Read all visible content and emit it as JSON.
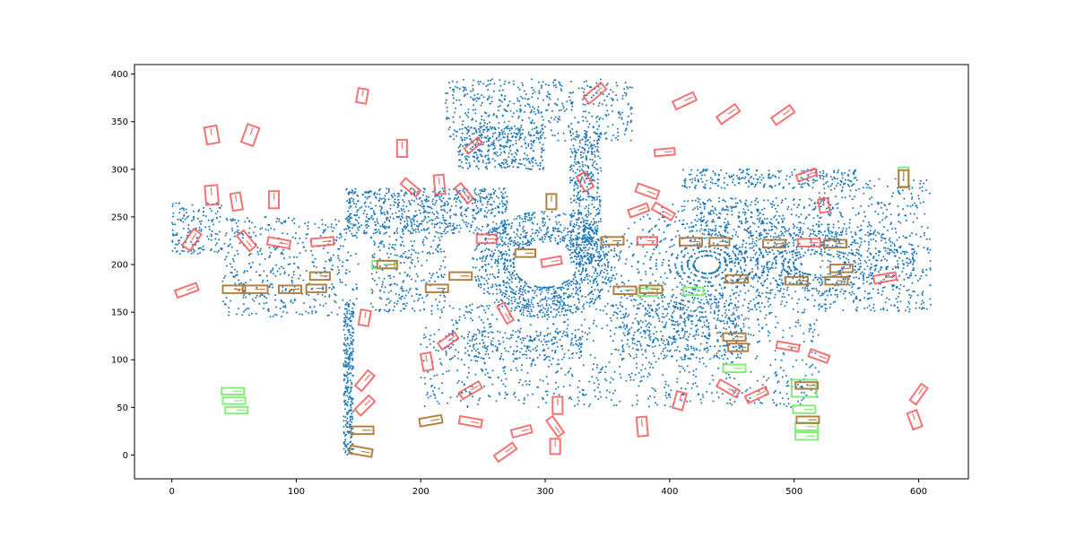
{
  "chart_data": {
    "type": "scatter",
    "title": "",
    "xlabel": "",
    "ylabel": "",
    "xlim": [
      -30,
      640
    ],
    "ylim": [
      -25,
      410
    ],
    "x_ticks": [
      0,
      100,
      200,
      300,
      400,
      500,
      600
    ],
    "y_ticks": [
      0,
      50,
      100,
      150,
      200,
      250,
      300,
      350,
      400
    ],
    "grid": false,
    "legend": "none",
    "colors": {
      "points": "#1f77b4",
      "red_boxes": "#f25b5b",
      "green_boxes": "#7aea6a",
      "brown_boxes": "#b07a3a",
      "axes": "#000000"
    },
    "red_boxes": [
      {
        "cx": 16,
        "cy": 226,
        "w": 16,
        "h": 10,
        "angle": 55
      },
      {
        "cx": 12,
        "cy": 173,
        "w": 18,
        "h": 8,
        "angle": 20
      },
      {
        "cx": 32,
        "cy": 273,
        "w": 10,
        "h": 20,
        "angle": 5
      },
      {
        "cx": 32,
        "cy": 336,
        "w": 10,
        "h": 18,
        "angle": 10
      },
      {
        "cx": 52,
        "cy": 266,
        "w": 8,
        "h": 18,
        "angle": 10
      },
      {
        "cx": 63,
        "cy": 336,
        "w": 10,
        "h": 20,
        "angle": -20
      },
      {
        "cx": 60,
        "cy": 225,
        "w": 16,
        "h": 9,
        "angle": -50
      },
      {
        "cx": 82,
        "cy": 268,
        "w": 8,
        "h": 18,
        "angle": 0
      },
      {
        "cx": 86,
        "cy": 223,
        "w": 18,
        "h": 8,
        "angle": -10
      },
      {
        "cx": 121,
        "cy": 224,
        "w": 18,
        "h": 8,
        "angle": 5
      },
      {
        "cx": 153,
        "cy": 377,
        "w": 8,
        "h": 15,
        "angle": -10
      },
      {
        "cx": 155,
        "cy": 144,
        "w": 8,
        "h": 16,
        "angle": -10
      },
      {
        "cx": 155,
        "cy": 78,
        "w": 16,
        "h": 9,
        "angle": 50
      },
      {
        "cx": 155,
        "cy": 52,
        "w": 16,
        "h": 9,
        "angle": 45
      },
      {
        "cx": 185,
        "cy": 322,
        "w": 8,
        "h": 18,
        "angle": 0
      },
      {
        "cx": 192,
        "cy": 281,
        "w": 16,
        "h": 8,
        "angle": -40
      },
      {
        "cx": 215,
        "cy": 284,
        "w": 8,
        "h": 20,
        "angle": 5
      },
      {
        "cx": 205,
        "cy": 98,
        "w": 8,
        "h": 18,
        "angle": 10
      },
      {
        "cx": 222,
        "cy": 120,
        "w": 16,
        "h": 8,
        "angle": 35
      },
      {
        "cx": 235,
        "cy": 275,
        "w": 16,
        "h": 8,
        "angle": -50
      },
      {
        "cx": 242,
        "cy": 325,
        "w": 14,
        "h": 7,
        "angle": 40
      },
      {
        "cx": 240,
        "cy": 68,
        "w": 18,
        "h": 8,
        "angle": 30
      },
      {
        "cx": 240,
        "cy": 35,
        "w": 18,
        "h": 8,
        "angle": -10
      },
      {
        "cx": 253,
        "cy": 227,
        "w": 16,
        "h": 9,
        "angle": 0
      },
      {
        "cx": 268,
        "cy": 149,
        "w": 16,
        "h": 8,
        "angle": -60
      },
      {
        "cx": 268,
        "cy": 3,
        "w": 18,
        "h": 8,
        "angle": 35
      },
      {
        "cx": 281,
        "cy": 25,
        "w": 16,
        "h": 8,
        "angle": 15
      },
      {
        "cx": 305,
        "cy": 203,
        "w": 16,
        "h": 8,
        "angle": 10
      },
      {
        "cx": 310,
        "cy": 52,
        "w": 8,
        "h": 18,
        "angle": 0
      },
      {
        "cx": 308,
        "cy": 30,
        "w": 16,
        "h": 8,
        "angle": -55
      },
      {
        "cx": 308,
        "cy": 9,
        "w": 8,
        "h": 16,
        "angle": 0
      },
      {
        "cx": 332,
        "cy": 287,
        "w": 8,
        "h": 18,
        "angle": 30
      },
      {
        "cx": 340,
        "cy": 380,
        "w": 18,
        "h": 9,
        "angle": 40
      },
      {
        "cx": 375,
        "cy": 257,
        "w": 16,
        "h": 8,
        "angle": 20
      },
      {
        "cx": 382,
        "cy": 277,
        "w": 18,
        "h": 9,
        "angle": -20
      },
      {
        "cx": 378,
        "cy": 30,
        "w": 8,
        "h": 20,
        "angle": 5
      },
      {
        "cx": 382,
        "cy": 225,
        "w": 16,
        "h": 8,
        "angle": 0
      },
      {
        "cx": 395,
        "cy": 256,
        "w": 18,
        "h": 8,
        "angle": -30
      },
      {
        "cx": 396,
        "cy": 318,
        "w": 16,
        "h": 7,
        "angle": 5
      },
      {
        "cx": 408,
        "cy": 57,
        "w": 8,
        "h": 18,
        "angle": -15
      },
      {
        "cx": 412,
        "cy": 372,
        "w": 18,
        "h": 9,
        "angle": 25
      },
      {
        "cx": 447,
        "cy": 358,
        "w": 18,
        "h": 9,
        "angle": 35
      },
      {
        "cx": 447,
        "cy": 70,
        "w": 18,
        "h": 8,
        "angle": -30
      },
      {
        "cx": 470,
        "cy": 63,
        "w": 18,
        "h": 8,
        "angle": 25
      },
      {
        "cx": 491,
        "cy": 357,
        "w": 18,
        "h": 9,
        "angle": 35
      },
      {
        "cx": 495,
        "cy": 114,
        "w": 18,
        "h": 7,
        "angle": -10
      },
      {
        "cx": 510,
        "cy": 294,
        "w": 16,
        "h": 7,
        "angle": 20
      },
      {
        "cx": 512,
        "cy": 223,
        "w": 18,
        "h": 8,
        "angle": 0
      },
      {
        "cx": 520,
        "cy": 104,
        "w": 16,
        "h": 8,
        "angle": -20
      },
      {
        "cx": 524,
        "cy": 262,
        "w": 8,
        "h": 14,
        "angle": 10
      },
      {
        "cx": 573,
        "cy": 186,
        "w": 18,
        "h": 8,
        "angle": 10
      },
      {
        "cx": 600,
        "cy": 64,
        "w": 16,
        "h": 8,
        "angle": 55
      },
      {
        "cx": 597,
        "cy": 37,
        "w": 8,
        "h": 18,
        "angle": 20
      }
    ],
    "green_boxes": [
      {
        "cx": 49,
        "cy": 67,
        "w": 18,
        "h": 7,
        "angle": 0
      },
      {
        "cx": 50,
        "cy": 57,
        "w": 18,
        "h": 7,
        "angle": 0
      },
      {
        "cx": 52,
        "cy": 47,
        "w": 18,
        "h": 7,
        "angle": 0
      },
      {
        "cx": 170,
        "cy": 200,
        "w": 18,
        "h": 8,
        "angle": 0
      },
      {
        "cx": 382,
        "cy": 171,
        "w": 16,
        "h": 8,
        "angle": 0
      },
      {
        "cx": 419,
        "cy": 172,
        "w": 16,
        "h": 8,
        "angle": 0
      },
      {
        "cx": 452,
        "cy": 91,
        "w": 18,
        "h": 8,
        "angle": 0
      },
      {
        "cx": 508,
        "cy": 70,
        "w": 20,
        "h": 18,
        "angle": 0
      },
      {
        "cx": 508,
        "cy": 48,
        "w": 18,
        "h": 8,
        "angle": 0
      },
      {
        "cx": 510,
        "cy": 30,
        "w": 18,
        "h": 8,
        "angle": 0
      },
      {
        "cx": 510,
        "cy": 20,
        "w": 18,
        "h": 8,
        "angle": 0
      },
      {
        "cx": 588,
        "cy": 292,
        "w": 8,
        "h": 20,
        "angle": 0
      }
    ],
    "brown_boxes": [
      {
        "cx": 50,
        "cy": 174,
        "w": 18,
        "h": 8,
        "angle": 0
      },
      {
        "cx": 67,
        "cy": 174,
        "w": 20,
        "h": 8,
        "angle": 0
      },
      {
        "cx": 95,
        "cy": 174,
        "w": 18,
        "h": 8,
        "angle": 0
      },
      {
        "cx": 116,
        "cy": 175,
        "w": 16,
        "h": 8,
        "angle": 0
      },
      {
        "cx": 119,
        "cy": 188,
        "w": 16,
        "h": 8,
        "angle": 0
      },
      {
        "cx": 173,
        "cy": 200,
        "w": 16,
        "h": 8,
        "angle": 0
      },
      {
        "cx": 213,
        "cy": 175,
        "w": 18,
        "h": 8,
        "angle": 0
      },
      {
        "cx": 232,
        "cy": 188,
        "w": 18,
        "h": 8,
        "angle": 0
      },
      {
        "cx": 284,
        "cy": 212,
        "w": 16,
        "h": 8,
        "angle": 0
      },
      {
        "cx": 305,
        "cy": 266,
        "w": 8,
        "h": 16,
        "angle": 0
      },
      {
        "cx": 354,
        "cy": 225,
        "w": 18,
        "h": 8,
        "angle": 0
      },
      {
        "cx": 364,
        "cy": 173,
        "w": 18,
        "h": 8,
        "angle": 0
      },
      {
        "cx": 385,
        "cy": 174,
        "w": 18,
        "h": 8,
        "angle": 0
      },
      {
        "cx": 417,
        "cy": 224,
        "w": 18,
        "h": 8,
        "angle": 0
      },
      {
        "cx": 440,
        "cy": 224,
        "w": 16,
        "h": 8,
        "angle": 0
      },
      {
        "cx": 454,
        "cy": 185,
        "w": 18,
        "h": 8,
        "angle": 0
      },
      {
        "cx": 452,
        "cy": 124,
        "w": 18,
        "h": 8,
        "angle": 0
      },
      {
        "cx": 455,
        "cy": 113,
        "w": 16,
        "h": 8,
        "angle": 0
      },
      {
        "cx": 484,
        "cy": 222,
        "w": 18,
        "h": 8,
        "angle": 0
      },
      {
        "cx": 502,
        "cy": 183,
        "w": 18,
        "h": 8,
        "angle": 0
      },
      {
        "cx": 510,
        "cy": 73,
        "w": 18,
        "h": 7,
        "angle": 0
      },
      {
        "cx": 511,
        "cy": 37,
        "w": 18,
        "h": 7,
        "angle": 0
      },
      {
        "cx": 533,
        "cy": 222,
        "w": 18,
        "h": 8,
        "angle": 0
      },
      {
        "cx": 538,
        "cy": 196,
        "w": 18,
        "h": 8,
        "angle": 0
      },
      {
        "cx": 534,
        "cy": 183,
        "w": 18,
        "h": 8,
        "angle": 0
      },
      {
        "cx": 588,
        "cy": 290,
        "w": 8,
        "h": 18,
        "angle": 0
      },
      {
        "cx": 153,
        "cy": 26,
        "w": 18,
        "h": 8,
        "angle": 0
      },
      {
        "cx": 152,
        "cy": 4,
        "w": 18,
        "h": 8,
        "angle": -10
      },
      {
        "cx": 208,
        "cy": 36,
        "w": 18,
        "h": 8,
        "angle": 10
      }
    ],
    "point_clusters": [
      {
        "kind": "ring",
        "cx": 300,
        "cy": 200,
        "rx_min": 25,
        "rx_max": 60,
        "ry_ratio": 0.95,
        "n": 1100
      },
      {
        "kind": "ring",
        "cx": 430,
        "cy": 200,
        "rx_min": 10,
        "rx_max": 80,
        "ry_ratio": 0.9,
        "n": 900
      },
      {
        "kind": "ring",
        "cx": 520,
        "cy": 200,
        "rx_min": 20,
        "rx_max": 80,
        "ry_ratio": 0.55,
        "n": 700
      },
      {
        "kind": "rect",
        "x0": 140,
        "x1": 270,
        "y0": 232,
        "y1": 280,
        "n": 700
      },
      {
        "kind": "rect",
        "x0": 220,
        "x1": 370,
        "y0": 330,
        "y1": 395,
        "n": 500
      },
      {
        "kind": "rect",
        "x0": 230,
        "x1": 300,
        "y0": 300,
        "y1": 345,
        "n": 350
      },
      {
        "kind": "rect",
        "x0": 320,
        "x1": 345,
        "y0": 200,
        "y1": 340,
        "n": 450
      },
      {
        "kind": "rect",
        "x0": 410,
        "x1": 550,
        "y0": 280,
        "y1": 300,
        "n": 250
      },
      {
        "kind": "rect",
        "x0": 520,
        "x1": 610,
        "y0": 150,
        "y1": 290,
        "n": 450
      },
      {
        "kind": "rect",
        "x0": 0,
        "x1": 40,
        "y0": 210,
        "y1": 265,
        "n": 150
      },
      {
        "kind": "rect",
        "x0": 40,
        "x1": 150,
        "y0": 145,
        "y1": 250,
        "n": 450
      },
      {
        "kind": "rect",
        "x0": 138,
        "x1": 146,
        "y0": 0,
        "y1": 160,
        "n": 300
      },
      {
        "kind": "rect",
        "x0": 200,
        "x1": 520,
        "y0": 50,
        "y1": 160,
        "n": 900
      },
      {
        "kind": "rect",
        "x0": 360,
        "x1": 460,
        "y0": 100,
        "y1": 170,
        "n": 400
      },
      {
        "kind": "rect",
        "x0": 220,
        "x1": 330,
        "y0": 100,
        "y1": 130,
        "n": 200
      },
      {
        "kind": "rect",
        "x0": 420,
        "x1": 530,
        "y0": 230,
        "y1": 270,
        "n": 250
      },
      {
        "kind": "rect",
        "x0": 160,
        "x1": 220,
        "y0": 150,
        "y1": 230,
        "n": 250
      }
    ]
  }
}
